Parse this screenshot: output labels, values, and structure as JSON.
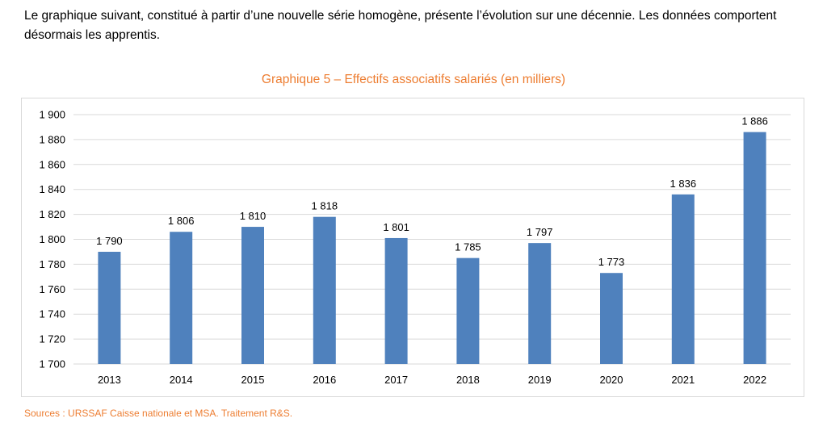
{
  "intro": "Le graphique suivant, constitué à partir d’une nouvelle série homogène, présente l’évolution sur une décennie. Les données comportent désormais les apprentis.",
  "sources": "Sources : URSSAF Caisse nationale et MSA. Traitement R&S.",
  "colors": {
    "bar": "#4F81BD",
    "title": "#ED7D31",
    "grid": "#d9d9d9"
  },
  "chart_data": {
    "type": "bar",
    "title": "Graphique 5 – Effectifs associatifs salariés (en milliers)",
    "xlabel": "",
    "ylabel": "",
    "categories": [
      "2013",
      "2014",
      "2015",
      "2016",
      "2017",
      "2018",
      "2019",
      "2020",
      "2021",
      "2022"
    ],
    "values": [
      1790,
      1806,
      1810,
      1818,
      1801,
      1785,
      1797,
      1773,
      1836,
      1886
    ],
    "value_labels": [
      "1 790",
      "1 806",
      "1 810",
      "1 818",
      "1 801",
      "1 785",
      "1 797",
      "1 773",
      "1 836",
      "1 886"
    ],
    "ylim": [
      1700,
      1900
    ],
    "yticks": [
      1700,
      1720,
      1740,
      1760,
      1780,
      1800,
      1820,
      1840,
      1860,
      1880,
      1900
    ],
    "ytick_labels": [
      "1 700",
      "1 720",
      "1 740",
      "1 760",
      "1 780",
      "1 800",
      "1 820",
      "1 840",
      "1 860",
      "1 880",
      "1 900"
    ],
    "grid": true,
    "legend": "none"
  }
}
